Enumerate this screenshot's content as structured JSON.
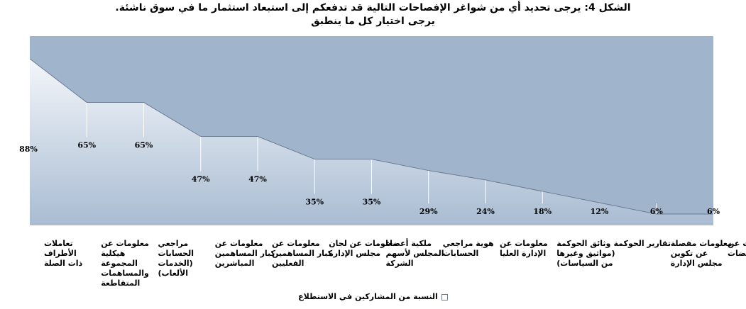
{
  "chart_data": {
    "type": "area",
    "title": "الشكل 4: يرجى تحديد أي من شواغر الإفصاحات التالية قد تدفعكم إلى استبعاد استثمار ما في سوق ناشئة.",
    "subtitle": "يرجى اختيار كل ما ينطبق",
    "categories": [
      [
        "تعاملات",
        "الأطراف",
        "ذات الصلة"
      ],
      [
        "معلومات عن",
        "هيكلية",
        "المجموعة",
        "والمساهمات",
        "المتقاطعة"
      ],
      [
        "مراجعي",
        "الحسابات",
        "(الخدمات",
        "الألعاب)"
      ],
      [
        "معلومات عن",
        "كبار المساهمين",
        "المباشرين"
      ],
      [
        "معلومات عن",
        "كبار المساهمين",
        "الفعليين"
      ],
      [
        "معلومات عن لجان",
        "مجلس الإدارة"
      ],
      [
        "ملكية أعضاء",
        "المجلس لأسهم",
        "الشركة"
      ],
      [
        "هوية مراجعي",
        "الحسابات"
      ],
      [
        "معلومات عن",
        "الإدارة العليا"
      ],
      [
        "وثائق الحوكمة",
        "(مواثيق وغيرها",
        "من السياسات)"
      ],
      [
        "تقارير الحوكمة"
      ],
      [
        "معلومات مفصلة",
        "عن تكوين",
        "مجلس الإدارة"
      ],
      [
        "معلومات عن",
        "التعويضات"
      ]
    ],
    "series": [
      {
        "name": "النسبة من المشاركين في الاستطلاع",
        "values": [
          88,
          65,
          65,
          47,
          47,
          35,
          35,
          29,
          24,
          18,
          12,
          6,
          6
        ]
      }
    ],
    "value_labels": [
      "88%",
      "65%",
      "65%",
      "47%",
      "47%",
      "35%",
      "35%",
      "29%",
      "24%",
      "18%",
      "12%",
      "6%",
      "6%"
    ],
    "ylim": [
      0,
      100
    ],
    "grid": false,
    "legend_position": "bottom",
    "colors": {
      "background_fill": "#a0b4cb",
      "area_top": "#f3f6fa",
      "area_bottom": "#a9bcd2",
      "area_stroke": "#6b7c93",
      "drop_line": "#ffffff"
    }
  }
}
